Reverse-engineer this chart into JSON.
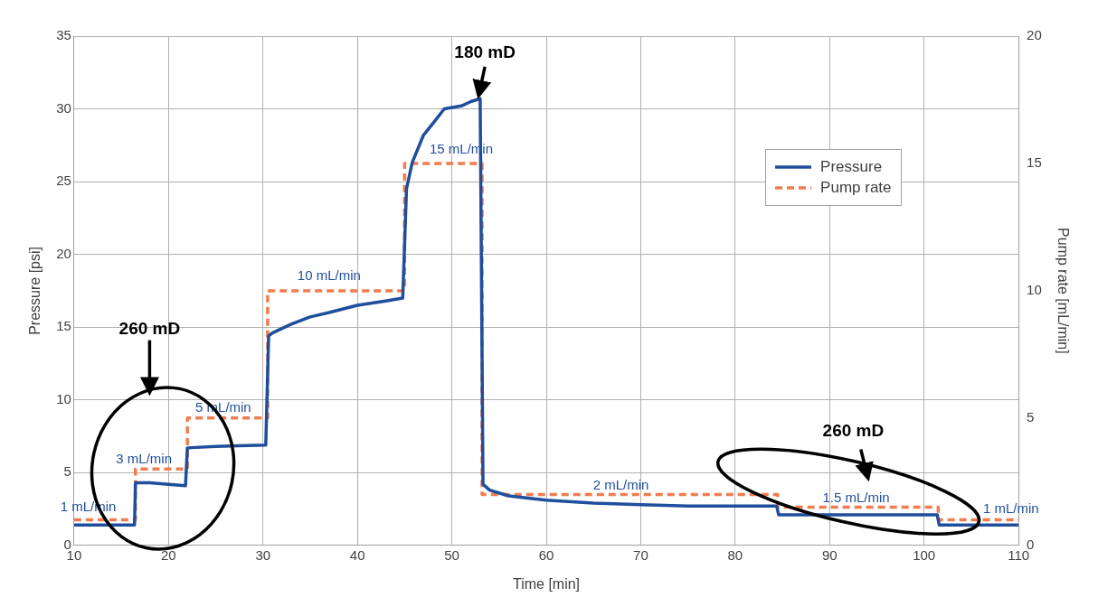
{
  "chart_data": {
    "type": "line",
    "xlabel": "Time [min]",
    "ylabel": "Pressure [psi]",
    "y2label": "Pump rate [mL/min]",
    "xlim": [
      10,
      110
    ],
    "xticks": [
      10,
      20,
      30,
      40,
      50,
      60,
      70,
      80,
      90,
      100,
      110
    ],
    "ylim": [
      0,
      35
    ],
    "yticks": [
      0,
      5,
      10,
      15,
      20,
      25,
      30,
      35
    ],
    "y2lim": [
      0,
      20
    ],
    "y2ticks": [
      0,
      5,
      10,
      15,
      20
    ],
    "grid": true,
    "legend": "top right",
    "marker": "none",
    "series": [
      {
        "name": "Pressure",
        "color": "#1f4e9c",
        "type": "line",
        "line_style": "solid",
        "x": [
          10,
          16.4,
          16.5,
          18,
          20,
          21.8,
          22,
          25,
          30.3,
          30.6,
          31,
          33,
          35,
          37,
          40,
          43,
          44.8,
          45.2,
          45.8,
          47,
          48,
          49.2,
          51,
          52,
          53,
          53.3,
          54,
          56,
          60,
          65,
          70,
          75,
          80,
          84.4,
          84.6,
          90,
          95,
          101.4,
          101.6,
          110
        ],
        "values": [
          1.4,
          1.4,
          4.3,
          4.3,
          4.2,
          4.1,
          6.7,
          6.8,
          6.9,
          14.4,
          14.6,
          15.2,
          15.7,
          16.0,
          16.5,
          16.8,
          17.0,
          24.5,
          26.3,
          28.2,
          29.0,
          30.0,
          30.2,
          30.5,
          30.7,
          4.2,
          3.8,
          3.4,
          3.1,
          2.9,
          2.8,
          2.7,
          2.7,
          2.7,
          2.1,
          2.1,
          2.1,
          2.1,
          1.4,
          1.4
        ]
      },
      {
        "name": "Pump rate",
        "color": "#f07c4f",
        "type": "step",
        "axis": "y2",
        "line_style": "dashed",
        "x": [
          10,
          16.5,
          22,
          30.5,
          45,
          53.2,
          84.5,
          101.5,
          110
        ],
        "values": [
          1,
          3,
          5,
          10,
          15,
          2,
          1.5,
          1,
          1
        ]
      }
    ],
    "annotations": [
      "260 mD",
      "180 mD",
      "260 mD",
      "1 mL/min",
      "3 mL/min",
      "5 mL/min",
      "10 mL/min",
      "15 mL/min",
      "2 mL/min",
      "1.5 mL/min",
      "1 mL/min"
    ]
  }
}
